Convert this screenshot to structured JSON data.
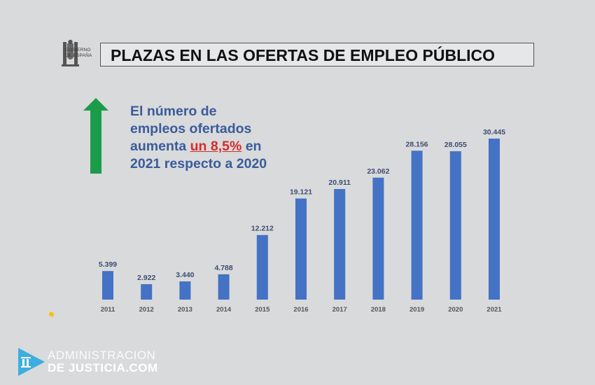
{
  "header": {
    "government_logo_text": [
      "GOBIERNO",
      "DE ESPAÑA"
    ],
    "title": "PLAZAS EN LAS OFERTAS DE EMPLEO PÚBLICO"
  },
  "message": {
    "line1": "El número de",
    "line2": "empleos ofertados",
    "line3_prefix": "aumenta ",
    "line3_highlight": "un 8,5%",
    "line3_suffix": " en",
    "line4": "2021 respecto a 2020",
    "arrow_icon": "up-arrow-icon",
    "arrow_color": "#1a9c4a",
    "highlight_color": "#d52b2b"
  },
  "chart_data": {
    "type": "bar",
    "categories": [
      "2011",
      "2012",
      "2013",
      "2014",
      "2015",
      "2016",
      "2017",
      "2018",
      "2019",
      "2020",
      "2021"
    ],
    "values": [
      5399,
      2922,
      3440,
      4788,
      12212,
      19121,
      20911,
      23062,
      28156,
      28055,
      30445
    ],
    "value_labels": [
      "5.399",
      "2.922",
      "3.440",
      "4.788",
      "12.212",
      "19.121",
      "20.911",
      "23.062",
      "28.156",
      "28.055",
      "30.445"
    ],
    "bar_color": "#4472c4",
    "title": "",
    "xlabel": "",
    "ylabel": "",
    "ylim": [
      0,
      31000
    ],
    "grid": false,
    "legend": "none"
  },
  "watermark": {
    "line1": "ADMINISTRACION",
    "line2": "DE JUSTICIA.COM",
    "logo_icon": "justice-play-icon"
  }
}
